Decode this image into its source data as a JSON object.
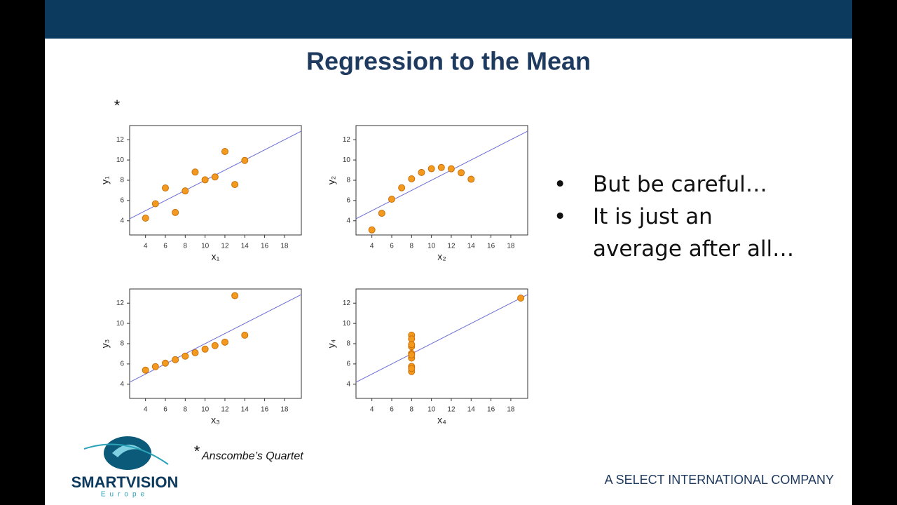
{
  "slide": {
    "title": "Regression to the Mean",
    "marker": "*",
    "bullets": [
      "But be careful…",
      "It is just an average after all…"
    ],
    "footnote_mark": "*",
    "footnote": "Anscombe’s Quartet",
    "company": "A SELECT INTERNATIONAL COMPANY",
    "logo_name": "SMARTVISION",
    "logo_sub": "Europe"
  },
  "chart_data": [
    {
      "type": "scatter",
      "x_label": "x₁",
      "y_label": "y₁",
      "color": "#f39a1e",
      "x": [
        10,
        8,
        13,
        9,
        11,
        14,
        6,
        4,
        12,
        7,
        5
      ],
      "values": [
        8.04,
        6.95,
        7.58,
        8.81,
        8.33,
        9.96,
        7.24,
        4.26,
        10.84,
        4.82,
        5.68
      ],
      "fit": {
        "x": [
          2.4,
          19.7
        ],
        "y": [
          4.2,
          12.85
        ],
        "color": "#6b6bd6"
      },
      "xlim": [
        2.4,
        19.7
      ],
      "ylim": [
        2.6,
        13.4
      ],
      "xticks": [
        4,
        6,
        8,
        10,
        12,
        14,
        16,
        18
      ],
      "yticks": [
        4,
        6,
        8,
        10,
        12
      ]
    },
    {
      "type": "scatter",
      "x_label": "x₂",
      "y_label": "y₂",
      "color": "#f39a1e",
      "x": [
        10,
        8,
        13,
        9,
        11,
        14,
        6,
        4,
        12,
        7,
        5
      ],
      "values": [
        9.14,
        8.14,
        8.74,
        8.77,
        9.26,
        8.1,
        6.13,
        3.1,
        9.13,
        7.26,
        4.74
      ],
      "fit": {
        "x": [
          2.4,
          19.7
        ],
        "y": [
          4.2,
          12.85
        ],
        "color": "#6b6bd6"
      },
      "xlim": [
        2.4,
        19.7
      ],
      "ylim": [
        2.6,
        13.4
      ],
      "xticks": [
        4,
        6,
        8,
        10,
        12,
        14,
        16,
        18
      ],
      "yticks": [
        4,
        6,
        8,
        10,
        12
      ]
    },
    {
      "type": "scatter",
      "x_label": "x₃",
      "y_label": "y₃",
      "color": "#f39a1e",
      "x": [
        10,
        8,
        13,
        9,
        11,
        14,
        6,
        4,
        12,
        7,
        5
      ],
      "values": [
        7.46,
        6.77,
        12.74,
        7.11,
        7.81,
        8.84,
        6.08,
        5.39,
        8.15,
        6.42,
        5.73
      ],
      "fit": {
        "x": [
          2.4,
          19.7
        ],
        "y": [
          4.2,
          12.85
        ],
        "color": "#6b6bd6"
      },
      "xlim": [
        2.4,
        19.7
      ],
      "ylim": [
        2.6,
        13.4
      ],
      "xticks": [
        4,
        6,
        8,
        10,
        12,
        14,
        16,
        18
      ],
      "yticks": [
        4,
        6,
        8,
        10,
        12
      ]
    },
    {
      "type": "scatter",
      "x_label": "x₄",
      "y_label": "y₄",
      "color": "#f39a1e",
      "x": [
        8,
        8,
        8,
        8,
        8,
        8,
        8,
        19,
        8,
        8,
        8
      ],
      "values": [
        6.58,
        5.76,
        7.71,
        8.84,
        8.47,
        7.04,
        5.25,
        12.5,
        5.56,
        7.91,
        6.89
      ],
      "fit": {
        "x": [
          2.4,
          19.7
        ],
        "y": [
          4.2,
          12.85
        ],
        "color": "#6b6bd6"
      },
      "xlim": [
        2.4,
        19.7
      ],
      "ylim": [
        2.6,
        13.4
      ],
      "xticks": [
        4,
        6,
        8,
        10,
        12,
        14,
        16,
        18
      ],
      "yticks": [
        4,
        6,
        8,
        10,
        12
      ]
    }
  ]
}
